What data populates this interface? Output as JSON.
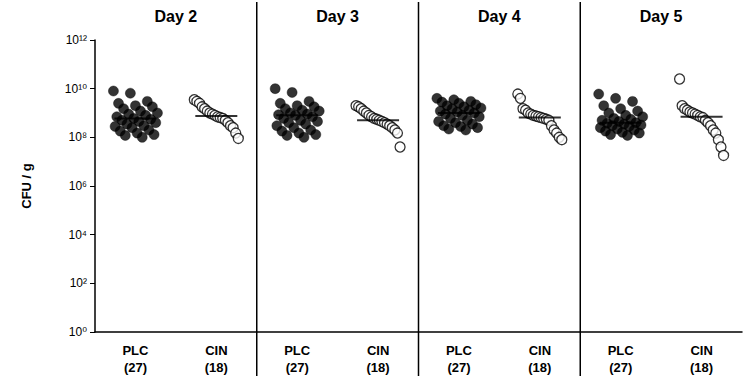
{
  "chart_data": {
    "type": "scatter",
    "y_label": "CFU / g",
    "log": "y",
    "grid": false,
    "panels": [
      "Day 2",
      "Day 3",
      "Day 4",
      "Day 5"
    ],
    "categories": [
      "PLC\n(27)",
      "CIN\n(18)",
      "PLC\n(27)",
      "CIN\n(18)",
      "PLC\n(27)",
      "CIN\n(18)",
      "PLC\n(27)",
      "CIN\n(18)"
    ],
    "ylim": [
      1,
      1000000000000.0
    ],
    "yticks": [
      {
        "value": 1,
        "label": "10⁰"
      },
      {
        "value": 100,
        "label": "10²"
      },
      {
        "value": 10000,
        "label": "10⁴"
      },
      {
        "value": 1000000,
        "label": "10⁶"
      },
      {
        "value": 100000000,
        "label": "10⁸"
      },
      {
        "value": 10000000000,
        "label": "10¹⁰"
      },
      {
        "value": 1000000000000,
        "label": "10¹²"
      }
    ],
    "series": [
      {
        "name": "PLC",
        "marker": "filled",
        "color": "#000000",
        "medians": [
          600000000.0,
          800000000.0,
          1000000000.0,
          400000000.0
        ],
        "values": [
          [
            8000000000.0,
            6500000000.0,
            3000000000.0,
            2500000000.0,
            2000000000.0,
            1800000000.0,
            1500000000.0,
            1200000000.0,
            1000000000.0,
            900000000.0,
            800000000.0,
            700000000.0,
            600000000.0,
            550000000.0,
            500000000.0,
            450000000.0,
            400000000.0,
            350000000.0,
            300000000.0,
            280000000.0,
            250000000.0,
            200000000.0,
            180000000.0,
            150000000.0,
            130000000.0,
            120000000.0,
            100000000.0
          ],
          [
            10000000000.0,
            7000000000.0,
            3000000000.0,
            2500000000.0,
            2000000000.0,
            1800000000.0,
            1500000000.0,
            1300000000.0,
            1200000000.0,
            1000000000.0,
            900000000.0,
            850000000.0,
            800000000.0,
            700000000.0,
            600000000.0,
            500000000.0,
            450000000.0,
            400000000.0,
            350000000.0,
            300000000.0,
            250000000.0,
            200000000.0,
            180000000.0,
            150000000.0,
            130000000.0,
            120000000.0,
            100000000.0
          ],
          [
            4000000000.0,
            3500000000.0,
            3000000000.0,
            2800000000.0,
            2500000000.0,
            2200000000.0,
            2000000000.0,
            1800000000.0,
            1600000000.0,
            1500000000.0,
            1300000000.0,
            1200000000.0,
            1100000000.0,
            1000000000.0,
            900000000.0,
            800000000.0,
            700000000.0,
            600000000.0,
            500000000.0,
            450000000.0,
            400000000.0,
            350000000.0,
            300000000.0,
            280000000.0,
            250000000.0,
            220000000.0,
            200000000.0
          ],
          [
            6000000000.0,
            4000000000.0,
            3000000000.0,
            2000000000.0,
            1500000000.0,
            1200000000.0,
            1000000000.0,
            800000000.0,
            700000000.0,
            600000000.0,
            550000000.0,
            500000000.0,
            450000000.0,
            400000000.0,
            380000000.0,
            350000000.0,
            320000000.0,
            300000000.0,
            280000000.0,
            250000000.0,
            220000000.0,
            200000000.0,
            180000000.0,
            160000000.0,
            150000000.0,
            130000000.0,
            120000000.0
          ]
        ]
      },
      {
        "name": "CIN",
        "marker": "open",
        "color": "#000000",
        "medians": [
          750000000.0,
          500000000.0,
          650000000.0,
          700000000.0
        ],
        "values": [
          [
            3500000000.0,
            3000000000.0,
            2500000000.0,
            1800000000.0,
            1500000000.0,
            1200000000.0,
            1000000000.0,
            900000000.0,
            800000000.0,
            700000000.0,
            650000000.0,
            600000000.0,
            500000000.0,
            400000000.0,
            300000000.0,
            250000000.0,
            150000000.0,
            90000000.0
          ],
          [
            2000000000.0,
            1800000000.0,
            1500000000.0,
            1200000000.0,
            1000000000.0,
            800000000.0,
            700000000.0,
            600000000.0,
            550000000.0,
            500000000.0,
            450000000.0,
            400000000.0,
            350000000.0,
            300000000.0,
            250000000.0,
            200000000.0,
            150000000.0,
            40000000.0
          ],
          [
            6000000000.0,
            4000000000.0,
            1500000000.0,
            1300000000.0,
            1000000000.0,
            900000000.0,
            800000000.0,
            750000000.0,
            700000000.0,
            650000000.0,
            600000000.0,
            550000000.0,
            500000000.0,
            300000000.0,
            200000000.0,
            150000000.0,
            100000000.0,
            80000000.0
          ],
          [
            25000000000.0,
            2000000000.0,
            1500000000.0,
            1300000000.0,
            1100000000.0,
            1000000000.0,
            900000000.0,
            800000000.0,
            700000000.0,
            650000000.0,
            500000000.0,
            400000000.0,
            300000000.0,
            200000000.0,
            150000000.0,
            80000000.0,
            40000000.0,
            18000000.0
          ]
        ]
      }
    ]
  }
}
